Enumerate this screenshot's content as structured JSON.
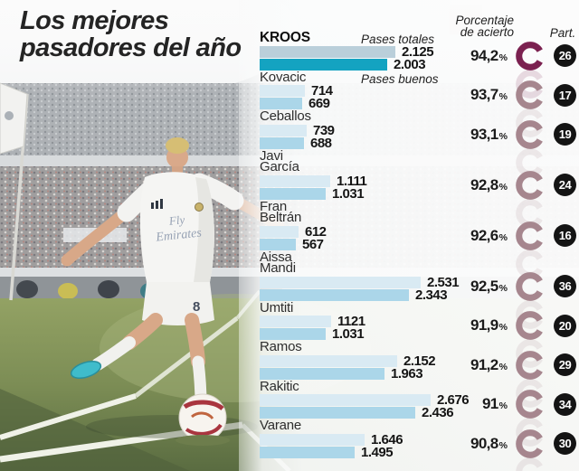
{
  "title": "Los mejores\npasadores del año",
  "headers": {
    "accuracy": "Porcentaje\nde acierto",
    "matches": "Part."
  },
  "percent_symbol": "%",
  "colors": {
    "bar_total": "#d9eaf3",
    "bar_good": "#abd6e9",
    "bar_total_leader": "#bacfda",
    "bar_good_leader": "#14a3c1",
    "ring": "#a6868e",
    "ring_leader": "#7b2150",
    "badge_bg": "#141414",
    "badge_text": "#ffffff"
  },
  "chart_data": {
    "type": "bar",
    "title": "Los mejores pasadores del año",
    "orientation": "horizontal",
    "categories": [
      "KROOS",
      "Kovacic",
      "Ceballos",
      "Javi García",
      "Fran Beltrán",
      "Aissa Mandi",
      "Umtiti",
      "Ramos",
      "Rakitic",
      "Varane"
    ],
    "series": [
      {
        "name": "Pases totales",
        "values": [
          2125,
          714,
          739,
          1111,
          612,
          2531,
          1121,
          2152,
          2676,
          1646
        ]
      },
      {
        "name": "Pases buenos",
        "values": [
          2003,
          669,
          688,
          1031,
          567,
          2343,
          1031,
          1963,
          2436,
          1495
        ]
      }
    ],
    "extra_columns": {
      "accuracy_pct": [
        94.2,
        93.7,
        93.1,
        92.8,
        92.6,
        92.5,
        91.9,
        91.2,
        91.0,
        90.8
      ],
      "matches_played": [
        26,
        17,
        19,
        24,
        16,
        36,
        20,
        29,
        34,
        30
      ]
    },
    "players": [
      {
        "name": "KROOS",
        "lead": true,
        "total": "2.125",
        "good": "2.003",
        "total_n": 2125,
        "good_n": 2003,
        "accuracy": "94,2",
        "matches": "26"
      },
      {
        "name": "Kovacic",
        "lead": false,
        "total": "714",
        "good": "669",
        "total_n": 714,
        "good_n": 669,
        "accuracy": "93,7",
        "matches": "17"
      },
      {
        "name": "Ceballos",
        "lead": false,
        "total": "739",
        "good": "688",
        "total_n": 739,
        "good_n": 688,
        "accuracy": "93,1",
        "matches": "19"
      },
      {
        "name": "Javi\nGarcía",
        "lead": false,
        "total": "1.111",
        "good": "1.031",
        "total_n": 1111,
        "good_n": 1031,
        "accuracy": "92,8",
        "matches": "24"
      },
      {
        "name": "Fran\nBeltrán",
        "lead": false,
        "total": "612",
        "good": "567",
        "total_n": 612,
        "good_n": 567,
        "accuracy": "92,6",
        "matches": "16"
      },
      {
        "name": "Aissa\nMandi",
        "lead": false,
        "total": "2.531",
        "good": "2.343",
        "total_n": 2531,
        "good_n": 2343,
        "accuracy": "92,5",
        "matches": "36"
      },
      {
        "name": "Umtiti",
        "lead": false,
        "total": "1121",
        "good": "1.031",
        "total_n": 1121,
        "good_n": 1031,
        "accuracy": "91,9",
        "matches": "20"
      },
      {
        "name": "Ramos",
        "lead": false,
        "total": "2.152",
        "good": "1.963",
        "total_n": 2152,
        "good_n": 1963,
        "accuracy": "91,2",
        "matches": "29"
      },
      {
        "name": "Rakitic",
        "lead": false,
        "total": "2.676",
        "good": "2.436",
        "total_n": 2676,
        "good_n": 2436,
        "accuracy": "91",
        "matches": "34"
      },
      {
        "name": "Varane",
        "lead": false,
        "total": "1.646",
        "good": "1.495",
        "total_n": 1646,
        "good_n": 1495,
        "accuracy": "90,8",
        "matches": "30"
      }
    ]
  }
}
